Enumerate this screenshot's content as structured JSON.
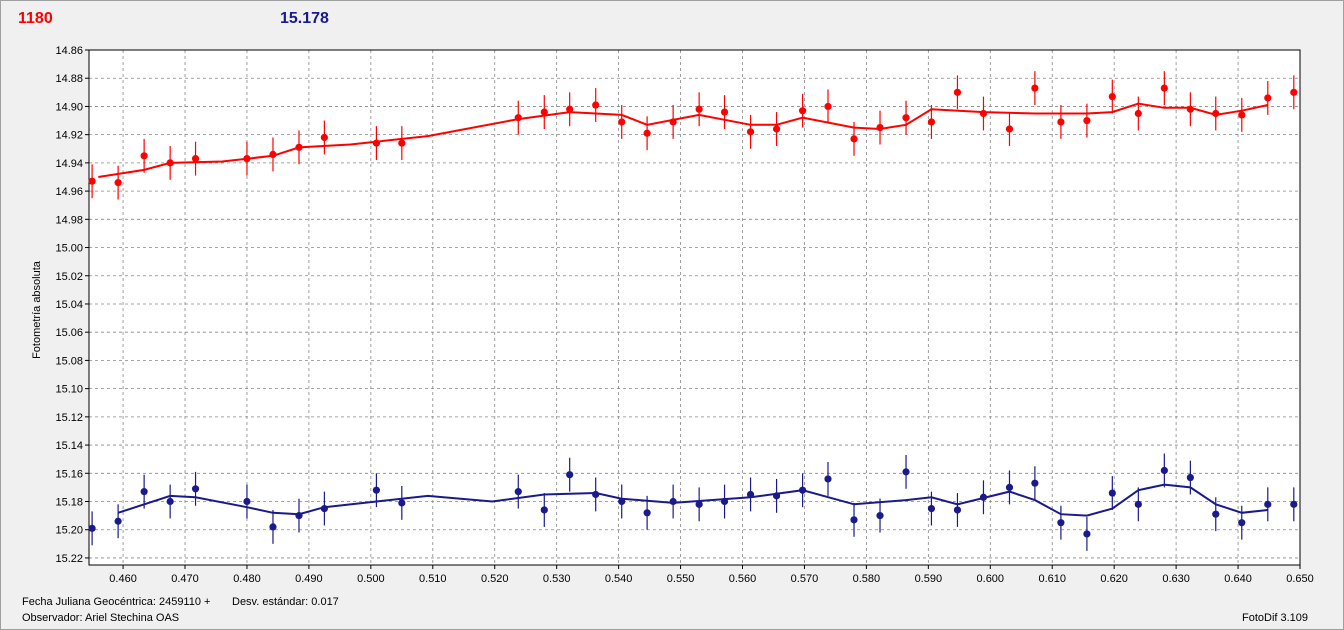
{
  "header": {
    "left_value": "1180",
    "left_color": "#ff0000",
    "right_value": "15.178",
    "right_color": "#1a1a8c"
  },
  "footer": {
    "jd_label": "Fecha Juliana Geocéntrica: 2459110 +",
    "std_label": "Desv. estándar: 0.017",
    "observer": "Observador: Ariel Stechina OAS",
    "software": "FotoDif 3.109"
  },
  "chart_data": {
    "type": "scatter",
    "ylabel": "Fotometría absoluta",
    "xlim": [
      0.4545,
      0.65
    ],
    "ylim": [
      14.86,
      15.225
    ],
    "y_inverted": true,
    "grid": true,
    "xticks": [
      "0.460",
      "0.470",
      "0.480",
      "0.490",
      "0.500",
      "0.510",
      "0.520",
      "0.530",
      "0.540",
      "0.550",
      "0.560",
      "0.570",
      "0.580",
      "0.590",
      "0.600",
      "0.610",
      "0.620",
      "0.630",
      "0.640",
      "0.650"
    ],
    "yticks": [
      "14.86",
      "14.88",
      "14.90",
      "14.92",
      "14.94",
      "14.96",
      "14.98",
      "15.00",
      "15.02",
      "15.04",
      "15.06",
      "15.08",
      "15.10",
      "15.12",
      "15.14",
      "15.16",
      "15.18",
      "15.20",
      "15.22"
    ],
    "series": [
      {
        "color": "#ff0000",
        "error": 0.012,
        "x": [
          0.455,
          0.4592,
          0.4634,
          0.4676,
          0.4717,
          0.48,
          0.4842,
          0.4884,
          0.4925,
          0.5009,
          0.505,
          0.5238,
          0.528,
          0.5321,
          0.5363,
          0.5405,
          0.5446,
          0.5488,
          0.553,
          0.5571,
          0.5613,
          0.5655,
          0.5697,
          0.5738,
          0.578,
          0.5822,
          0.5864,
          0.5905,
          0.5947,
          0.5989,
          0.6031,
          0.6072,
          0.6114,
          0.6156,
          0.6197,
          0.6239,
          0.6281,
          0.6323,
          0.6364,
          0.6406,
          0.6448,
          0.649
        ],
        "y": [
          14.953,
          14.954,
          14.935,
          14.94,
          14.937,
          14.937,
          14.934,
          14.929,
          14.922,
          14.926,
          14.926,
          14.908,
          14.904,
          14.902,
          14.899,
          14.911,
          14.919,
          14.911,
          14.902,
          14.904,
          14.918,
          14.916,
          14.903,
          14.9,
          14.923,
          14.915,
          14.908,
          14.911,
          14.89,
          14.905,
          14.916,
          14.887,
          14.911,
          14.91,
          14.893,
          14.905,
          14.887,
          14.902,
          14.905,
          14.906,
          14.894,
          14.89
        ],
        "fit_x": [
          0.456,
          0.4634,
          0.4676,
          0.476,
          0.4842,
          0.4884,
          0.4967,
          0.5092,
          0.5238,
          0.5321,
          0.5405,
          0.5446,
          0.553,
          0.5613,
          0.5655,
          0.5697,
          0.578,
          0.5822,
          0.5864,
          0.5905,
          0.5989,
          0.6072,
          0.6156,
          0.6197,
          0.6239,
          0.6281,
          0.6323,
          0.6364,
          0.6406,
          0.6448
        ],
        "fit_y": [
          14.95,
          14.945,
          14.94,
          14.939,
          14.935,
          14.929,
          14.927,
          14.921,
          14.909,
          14.904,
          14.906,
          14.913,
          14.906,
          14.913,
          14.913,
          14.908,
          14.915,
          14.916,
          14.913,
          14.902,
          14.904,
          14.905,
          14.905,
          14.904,
          14.898,
          14.901,
          14.901,
          14.906,
          14.903,
          14.899
        ]
      },
      {
        "color": "#1a1a8c",
        "error": 0.012,
        "x": [
          0.455,
          0.4592,
          0.4634,
          0.4676,
          0.4717,
          0.48,
          0.4842,
          0.4884,
          0.4925,
          0.5009,
          0.505,
          0.5238,
          0.528,
          0.5321,
          0.5363,
          0.5405,
          0.5446,
          0.5488,
          0.553,
          0.5571,
          0.5613,
          0.5655,
          0.5697,
          0.5738,
          0.578,
          0.5822,
          0.5864,
          0.5905,
          0.5947,
          0.5989,
          0.6031,
          0.6072,
          0.6114,
          0.6156,
          0.6197,
          0.6239,
          0.6281,
          0.6323,
          0.6364,
          0.6406,
          0.6448,
          0.649
        ],
        "y": [
          15.199,
          15.194,
          15.173,
          15.18,
          15.171,
          15.18,
          15.198,
          15.19,
          15.185,
          15.172,
          15.181,
          15.173,
          15.186,
          15.161,
          15.175,
          15.18,
          15.188,
          15.18,
          15.182,
          15.18,
          15.175,
          15.176,
          15.172,
          15.164,
          15.193,
          15.19,
          15.159,
          15.185,
          15.186,
          15.177,
          15.17,
          15.167,
          15.195,
          15.203,
          15.174,
          15.182,
          15.158,
          15.163,
          15.189,
          15.195,
          15.182,
          15.182
        ],
        "fit_x": [
          0.4592,
          0.4676,
          0.4717,
          0.48,
          0.4842,
          0.4884,
          0.4925,
          0.5009,
          0.5092,
          0.5196,
          0.528,
          0.5363,
          0.5405,
          0.5488,
          0.5613,
          0.5697,
          0.578,
          0.5864,
          0.5905,
          0.5947,
          0.6031,
          0.6072,
          0.6114,
          0.6156,
          0.6197,
          0.6239,
          0.6281,
          0.6323,
          0.6364,
          0.6406,
          0.6448
        ],
        "fit_y": [
          15.188,
          15.176,
          15.177,
          15.184,
          15.188,
          15.189,
          15.184,
          15.18,
          15.176,
          15.18,
          15.175,
          15.174,
          15.178,
          15.181,
          15.177,
          15.172,
          15.182,
          15.179,
          15.177,
          15.182,
          15.173,
          15.179,
          15.189,
          15.19,
          15.185,
          15.172,
          15.168,
          15.17,
          15.182,
          15.188,
          15.186
        ]
      }
    ]
  }
}
